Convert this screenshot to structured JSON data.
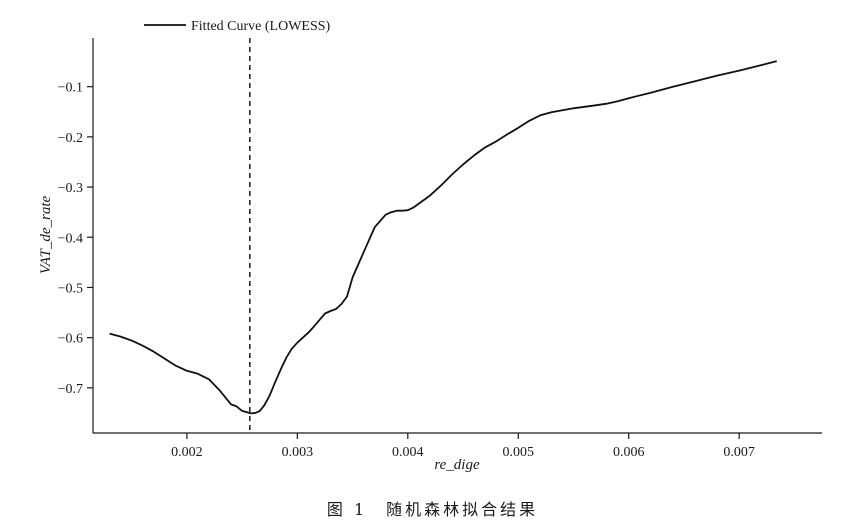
{
  "caption": "图 1　随机森林拟合结果",
  "chart_data": {
    "type": "line",
    "xlabel": "re_dige",
    "ylabel": "VAT_de_rate",
    "xlim": [
      0.00115,
      0.00775
    ],
    "ylim": [
      -0.79,
      -0.003
    ],
    "x_ticks": [
      0.002,
      0.003,
      0.004,
      0.005,
      0.006,
      0.007
    ],
    "x_tick_labels": [
      "0.002",
      "0.003",
      "0.004",
      "0.005",
      "0.006",
      "0.007"
    ],
    "y_ticks": [
      -0.1,
      -0.2,
      -0.3,
      -0.4,
      -0.5,
      -0.6,
      -0.7
    ],
    "y_tick_labels": [
      "−0.1",
      "−0.2",
      "−0.3",
      "−0.4",
      "−0.5",
      "−0.6",
      "−0.7"
    ],
    "grid": false,
    "legend_position": "top-left",
    "vline_x": 0.00257,
    "vline_style": "dashed",
    "series": [
      {
        "name": "Fitted Curve (LOWESS)",
        "color": "#111111",
        "x": [
          0.0013,
          0.0014,
          0.0015,
          0.0016,
          0.0017,
          0.0018,
          0.0019,
          0.002,
          0.0021,
          0.0022,
          0.0023,
          0.0024,
          0.00245,
          0.0025,
          0.00255,
          0.00258,
          0.00262,
          0.00266,
          0.0027,
          0.00275,
          0.0028,
          0.00285,
          0.0029,
          0.00295,
          0.003,
          0.00305,
          0.0031,
          0.00315,
          0.0032,
          0.00325,
          0.0033,
          0.00335,
          0.0034,
          0.00345,
          0.0035,
          0.0036,
          0.0037,
          0.0038,
          0.00385,
          0.0039,
          0.00395,
          0.004,
          0.00405,
          0.0041,
          0.0042,
          0.0043,
          0.0044,
          0.0045,
          0.0046,
          0.0047,
          0.0048,
          0.0049,
          0.005,
          0.0051,
          0.0052,
          0.0053,
          0.0054,
          0.0055,
          0.0056,
          0.0057,
          0.0058,
          0.0059,
          0.006,
          0.0062,
          0.0064,
          0.0066,
          0.0068,
          0.007,
          0.0072,
          0.00734
        ],
        "y": [
          -0.592,
          -0.598,
          -0.606,
          -0.616,
          -0.628,
          -0.642,
          -0.656,
          -0.666,
          -0.672,
          -0.683,
          -0.706,
          -0.733,
          -0.737,
          -0.746,
          -0.749,
          -0.751,
          -0.75,
          -0.746,
          -0.735,
          -0.715,
          -0.688,
          -0.663,
          -0.64,
          -0.622,
          -0.61,
          -0.6,
          -0.59,
          -0.578,
          -0.565,
          -0.552,
          -0.547,
          -0.543,
          -0.533,
          -0.518,
          -0.48,
          -0.43,
          -0.38,
          -0.355,
          -0.35,
          -0.347,
          -0.347,
          -0.346,
          -0.341,
          -0.333,
          -0.317,
          -0.297,
          -0.275,
          -0.255,
          -0.237,
          -0.221,
          -0.209,
          -0.195,
          -0.182,
          -0.168,
          -0.157,
          -0.151,
          -0.147,
          -0.143,
          -0.14,
          -0.137,
          -0.134,
          -0.129,
          -0.123,
          -0.112,
          -0.1,
          -0.089,
          -0.078,
          -0.068,
          -0.057,
          -0.049
        ]
      }
    ]
  }
}
